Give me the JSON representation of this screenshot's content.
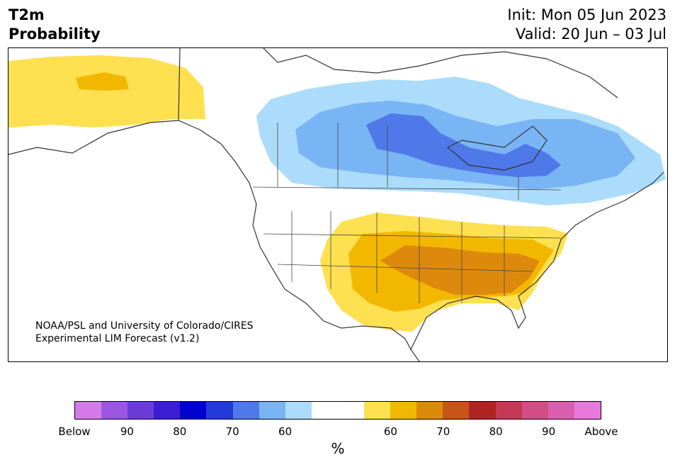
{
  "title": {
    "line1": "T2m",
    "line2": "Probability"
  },
  "dates": {
    "init": "Init: Mon 05 Jun 2023",
    "valid": "Valid: 20 Jun – 03 Jul"
  },
  "credit": {
    "line1": "NOAA/PSL and University of Colorado/CIRES",
    "line2": "Experimental LIM Forecast (v1.2)"
  },
  "colorbar": {
    "colors": [
      "#d57ae8",
      "#9a55e3",
      "#6b3bd9",
      "#3a1fd2",
      "#0000cf",
      "#2339d8",
      "#4f79e8",
      "#79b4f4",
      "#acdcfb",
      "#ffffff",
      "#ffffff",
      "#ffe050",
      "#f2b800",
      "#dd8a0c",
      "#c85518",
      "#b02424",
      "#c43a56",
      "#d04e84",
      "#db5fae",
      "#e878dc"
    ],
    "ticks": [
      "Below",
      "90",
      "80",
      "70",
      "60",
      "60",
      "70",
      "80",
      "90",
      "Above"
    ],
    "unit": "%"
  },
  "map": {
    "land_color": "#ffffff",
    "border_color": "#333333",
    "categories": {
      "below_50_60": "#acdcfb",
      "below_60_70": "#79b4f4",
      "below_70_80": "#4f79e8",
      "above_50_60": "#ffe050",
      "above_60_70": "#f2b800",
      "above_70_80": "#dd8a0c"
    }
  }
}
